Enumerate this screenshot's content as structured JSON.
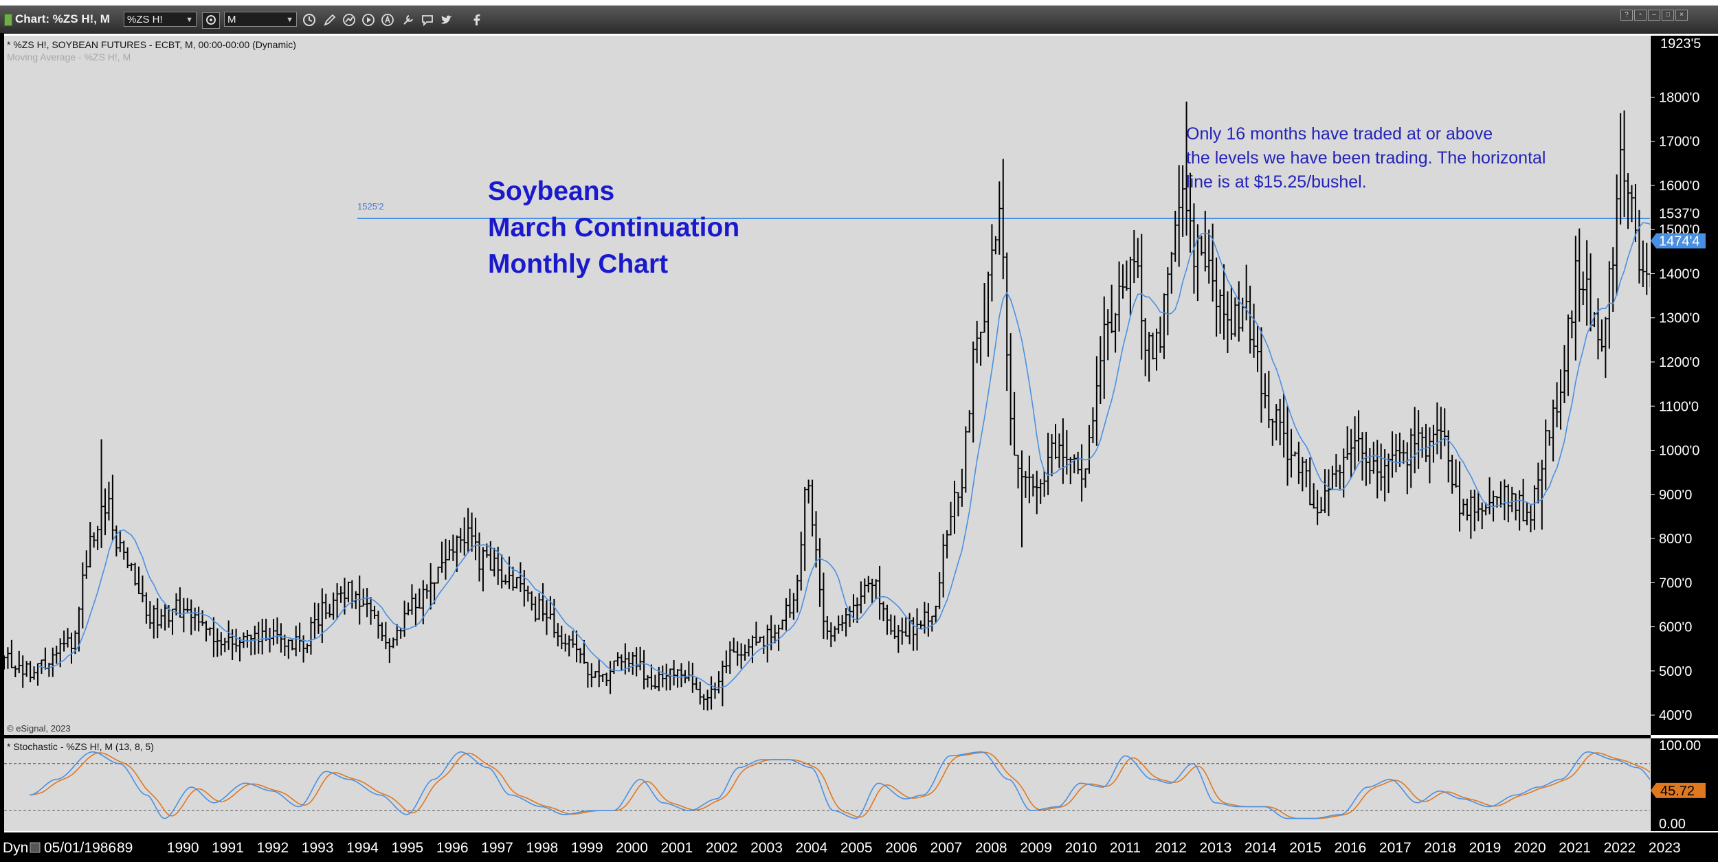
{
  "toolbar": {
    "window_title": "Chart: %ZS H!, M",
    "symbol_value": "%ZS H!",
    "interval_value": "M",
    "icons": [
      "clock-icon",
      "pencil-icon",
      "chart-icon",
      "play-icon",
      "alert-icon",
      "tools-icon",
      "comment-icon",
      "twitter-icon",
      "facebook-icon"
    ]
  },
  "price_panel": {
    "series_info": "* %ZS H!, SOYBEAN FUTURES - ECBT, M, 00:00-00:00 (Dynamic)",
    "ma_info": "Moving Average - %ZS H!, M",
    "copyright": "© eSignal, 2023",
    "title_lines": [
      "Soybeans",
      "March Continuation",
      "Monthly Chart"
    ],
    "annotation_lines": [
      "Only 16 months have traded at or above",
      "the levels we have been trading. The horizontal",
      "line is at $15.25/bushel."
    ],
    "hline_label": "1525'2",
    "colors": {
      "background": "#d9d9d9",
      "bars": "#000000",
      "moving_average": "#4a90e2",
      "hline": "#4a8fe8",
      "title": "#1a1acc",
      "annotation": "#2424b8"
    }
  },
  "stoch_panel": {
    "info": "* Stochastic - %ZS H!, M (13, 8, 5)",
    "colors": {
      "k_line": "#4a90e2",
      "d_line": "#e07820"
    }
  },
  "time_axis": {
    "left_label": "Dyn",
    "start_date": "05/01/1986",
    "first_year_fragment": "89"
  },
  "chart_data": [
    {
      "type": "ohlc",
      "title": "Soybeans March Continuation Monthly Chart",
      "y_ticks": [
        "400'0",
        "500'0",
        "600'0",
        "700'0",
        "800'0",
        "900'0",
        "1000'0",
        "1100'0",
        "1200'0",
        "1300'0",
        "1400'0",
        "1500'0",
        "1600'0",
        "1700'0",
        "1800'0"
      ],
      "y_top_label": "1923'5",
      "ylim": [
        355,
        1923.6
      ],
      "last_price_label": "1537'0",
      "last_price_value": 1537,
      "current_price_badge": "1474'4",
      "current_price_value": 1474.5,
      "horizontal_line_value": 1525.25,
      "x_years": [
        "1990",
        "1991",
        "1992",
        "1993",
        "1994",
        "1995",
        "1996",
        "1997",
        "1998",
        "1999",
        "2000",
        "2001",
        "2002",
        "2003",
        "2004",
        "2005",
        "2006",
        "2007",
        "2008",
        "2009",
        "2010",
        "2011",
        "2012",
        "2013",
        "2014",
        "2015",
        "2016",
        "2017",
        "2018",
        "2019",
        "2020",
        "2021",
        "2022",
        "2023"
      ],
      "x_start": 1986.33,
      "x_end": 2023.2,
      "monthly_close_anchors": [
        [
          1986.33,
          530
        ],
        [
          1987.0,
          500
        ],
        [
          1987.8,
          560
        ],
        [
          1988.3,
          800
        ],
        [
          1988.6,
          880
        ],
        [
          1989.0,
          760
        ],
        [
          1989.6,
          620
        ],
        [
          1990.3,
          640
        ],
        [
          1990.9,
          580
        ],
        [
          1991.5,
          570
        ],
        [
          1992.3,
          580
        ],
        [
          1992.9,
          560
        ],
        [
          1993.6,
          650
        ],
        [
          1994.1,
          680
        ],
        [
          1994.9,
          570
        ],
        [
          1995.6,
          660
        ],
        [
          1996.2,
          750
        ],
        [
          1996.6,
          800
        ],
        [
          1997.0,
          750
        ],
        [
          1997.6,
          700
        ],
        [
          1998.2,
          640
        ],
        [
          1998.9,
          560
        ],
        [
          1999.6,
          480
        ],
        [
          2000.2,
          530
        ],
        [
          2000.8,
          480
        ],
        [
          2001.5,
          500
        ],
        [
          2002.0,
          440
        ],
        [
          2002.6,
          540
        ],
        [
          2003.2,
          570
        ],
        [
          2003.9,
          640
        ],
        [
          2004.2,
          900
        ],
        [
          2004.7,
          570
        ],
        [
          2005.2,
          650
        ],
        [
          2005.6,
          700
        ],
        [
          2006.2,
          580
        ],
        [
          2006.9,
          620
        ],
        [
          2007.6,
          900
        ],
        [
          2008.0,
          1250
        ],
        [
          2008.5,
          1550
        ],
        [
          2008.8,
          1000
        ],
        [
          2009.3,
          900
        ],
        [
          2009.8,
          1000
        ],
        [
          2010.4,
          960
        ],
        [
          2010.9,
          1300
        ],
        [
          2011.5,
          1400
        ],
        [
          2011.9,
          1200
        ],
        [
          2012.5,
          1550
        ],
        [
          2012.9,
          1450
        ],
        [
          2013.5,
          1300
        ],
        [
          2014.0,
          1300
        ],
        [
          2014.5,
          1100
        ],
        [
          2015.0,
          1000
        ],
        [
          2015.6,
          880
        ],
        [
          2016.4,
          1000
        ],
        [
          2016.9,
          960
        ],
        [
          2017.5,
          1000
        ],
        [
          2018.3,
          1020
        ],
        [
          2018.8,
          880
        ],
        [
          2019.5,
          900
        ],
        [
          2020.3,
          860
        ],
        [
          2020.9,
          1100
        ],
        [
          2021.4,
          1400
        ],
        [
          2021.9,
          1250
        ],
        [
          2022.4,
          1650
        ],
        [
          2022.8,
          1400
        ],
        [
          2023.2,
          1474.5
        ]
      ]
    },
    {
      "type": "line",
      "title": "Stochastic - %ZS H!, M (13, 8, 5)",
      "y_ticks": [
        "0.00",
        "100.00"
      ],
      "ylim": [
        0,
        100
      ],
      "reference_lines": [
        80,
        20
      ],
      "last_value_badge": "45.72",
      "last_value": 45.72,
      "series_names": [
        "%K",
        "%D"
      ],
      "k_anchors": [
        [
          1986.9,
          40
        ],
        [
          1987.5,
          60
        ],
        [
          1988.3,
          95
        ],
        [
          1988.9,
          80
        ],
        [
          1989.5,
          40
        ],
        [
          1989.9,
          10
        ],
        [
          1990.5,
          50
        ],
        [
          1991.0,
          30
        ],
        [
          1991.7,
          55
        ],
        [
          1992.3,
          45
        ],
        [
          1992.9,
          25
        ],
        [
          1993.5,
          70
        ],
        [
          1994.0,
          60
        ],
        [
          1994.7,
          40
        ],
        [
          1995.3,
          15
        ],
        [
          1995.9,
          60
        ],
        [
          1996.5,
          95
        ],
        [
          1997.1,
          75
        ],
        [
          1997.6,
          40
        ],
        [
          1998.3,
          25
        ],
        [
          1998.8,
          15
        ],
        [
          1999.4,
          20
        ],
        [
          1999.9,
          20
        ],
        [
          2000.5,
          60
        ],
        [
          2001.0,
          30
        ],
        [
          2001.6,
          20
        ],
        [
          2002.2,
          35
        ],
        [
          2002.7,
          75
        ],
        [
          2003.2,
          85
        ],
        [
          2003.8,
          85
        ],
        [
          2004.3,
          75
        ],
        [
          2004.8,
          20
        ],
        [
          2005.3,
          10
        ],
        [
          2005.8,
          55
        ],
        [
          2006.4,
          35
        ],
        [
          2006.8,
          40
        ],
        [
          2007.4,
          90
        ],
        [
          2008.1,
          95
        ],
        [
          2008.7,
          60
        ],
        [
          2009.2,
          20
        ],
        [
          2009.8,
          25
        ],
        [
          2010.3,
          55
        ],
        [
          2010.8,
          50
        ],
        [
          2011.3,
          90
        ],
        [
          2011.9,
          60
        ],
        [
          2012.3,
          55
        ],
        [
          2012.8,
          80
        ],
        [
          2013.3,
          30
        ],
        [
          2013.8,
          25
        ],
        [
          2014.4,
          25
        ],
        [
          2014.9,
          10
        ],
        [
          2015.5,
          10
        ],
        [
          2016.1,
          15
        ],
        [
          2016.7,
          50
        ],
        [
          2017.2,
          60
        ],
        [
          2017.8,
          30
        ],
        [
          2018.3,
          45
        ],
        [
          2018.8,
          35
        ],
        [
          2019.4,
          25
        ],
        [
          2020.0,
          40
        ],
        [
          2020.5,
          50
        ],
        [
          2021.0,
          60
        ],
        [
          2021.6,
          95
        ],
        [
          2022.2,
          85
        ],
        [
          2022.7,
          75
        ],
        [
          2023.2,
          50
        ]
      ]
    }
  ]
}
